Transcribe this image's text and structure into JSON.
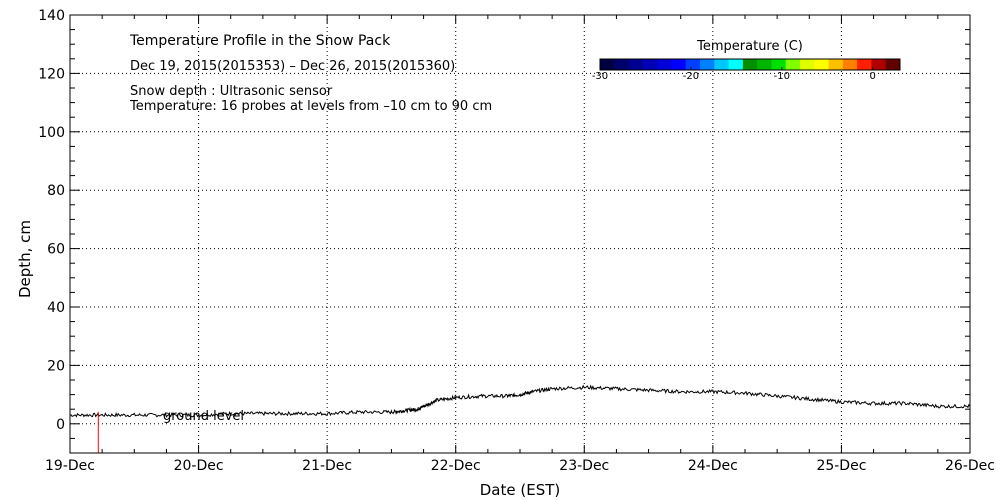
{
  "chart_data": {
    "type": "line",
    "title": "Temperature Profile in the Snow Pack",
    "subtitle": "Dec 19, 2015(2015353) – Dec 26, 2015(2015360)",
    "annotations": [
      "Snow depth : Ultrasonic sensor",
      "Temperature: 16 probes at levels from –10 cm to 90 cm"
    ],
    "ground_label": "ground level",
    "xlabel": "Date (EST)",
    "ylabel": "Depth, cm",
    "x_ticks": [
      "19-Dec",
      "20-Dec",
      "21-Dec",
      "22-Dec",
      "23-Dec",
      "24-Dec",
      "25-Dec",
      "26-Dec"
    ],
    "xlim": [
      0,
      7
    ],
    "y_ticks": [
      0,
      20,
      40,
      60,
      80,
      100,
      120,
      140
    ],
    "ylim": [
      -10,
      140
    ],
    "grid": true,
    "colorbar": {
      "title": "Temperature (C)",
      "range": [
        -30,
        3
      ],
      "ticks": [
        -30,
        -20,
        -10,
        0
      ],
      "colors": [
        "#000040",
        "#00006a",
        "#000090",
        "#0000b4",
        "#0000d8",
        "#0000ff",
        "#0040ff",
        "#0080ff",
        "#00c8ff",
        "#00ffff",
        "#009000",
        "#00b400",
        "#00e000",
        "#80ff00",
        "#e0ff00",
        "#ffff00",
        "#ffc000",
        "#ff8000",
        "#ff2000",
        "#b00000",
        "#600000"
      ]
    },
    "series": [
      {
        "name": "Snow depth",
        "color": "#000000",
        "x": [
          0,
          0.25,
          0.5,
          0.75,
          1.0,
          1.25,
          1.5,
          1.75,
          2.0,
          2.25,
          2.5,
          2.6,
          2.7,
          2.75,
          2.85,
          3.0,
          3.2,
          3.4,
          3.5,
          3.6,
          3.75,
          4.0,
          4.25,
          4.5,
          4.75,
          5.0,
          5.25,
          5.5,
          5.75,
          6.0,
          6.25,
          6.5,
          6.75,
          7.0
        ],
        "y": [
          3,
          3,
          3,
          3,
          3,
          3.5,
          3.5,
          3.5,
          3.5,
          4,
          4,
          4.5,
          5,
          6,
          8,
          9,
          9.5,
          9.5,
          10,
          11,
          12,
          12.5,
          12,
          11.5,
          11,
          11,
          10.5,
          9.5,
          8.5,
          7.5,
          7,
          7,
          6,
          6
        ]
      },
      {
        "name": "Ground marker",
        "color": "#ff0000",
        "x": [
          0.22,
          0.22
        ],
        "y": [
          -10,
          4
        ]
      }
    ]
  }
}
